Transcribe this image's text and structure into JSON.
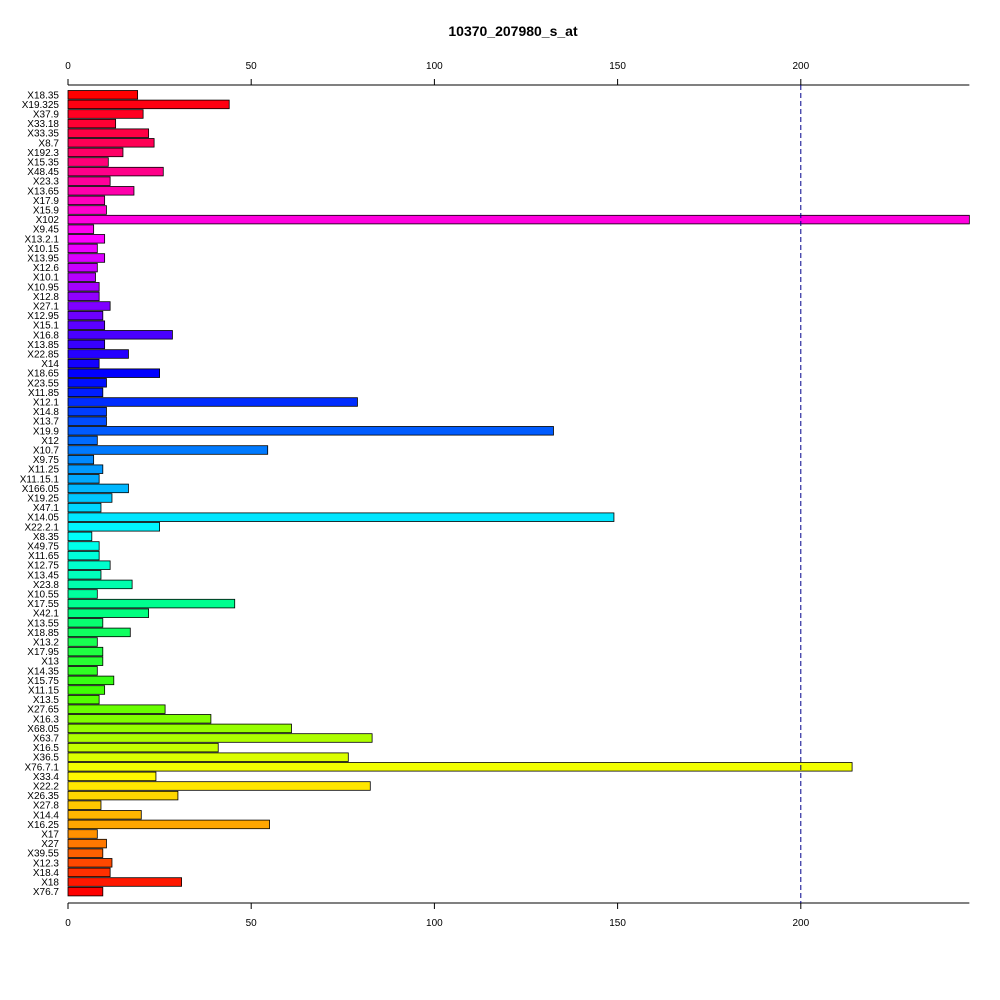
{
  "chart_data": {
    "type": "bar",
    "orientation": "horizontal",
    "title": "10370_207980_s_at",
    "xlabel": "",
    "ylabel": "",
    "xlim": [
      0,
      246
    ],
    "xticks": [
      0,
      50,
      100,
      150,
      200
    ],
    "reference_line": {
      "value": 200,
      "style": "dashed",
      "color": "#00008B"
    },
    "grid": false,
    "legend": "none",
    "colors": "rainbow gradient by bar order (red → magenta → blue → cyan → green → yellow → orange → red)",
    "categories": [
      "X18.35",
      "X19.325",
      "X37.9",
      "X33.18",
      "X33.35",
      "X8.7",
      "X192.3",
      "X15.35",
      "X48.45",
      "X23.3",
      "X13.65",
      "X17.9",
      "X15.9",
      "X102",
      "X9.45",
      "X13.2.1",
      "X10.15",
      "X13.95",
      "X12.6",
      "X10.1",
      "X10.95",
      "X12.8",
      "X27.1",
      "X12.95",
      "X15.1",
      "X16.8",
      "X13.85",
      "X22.85",
      "X14",
      "X18.65",
      "X23.55",
      "X11.85",
      "X12.1",
      "X14.8",
      "X13.7",
      "X19.9",
      "X12",
      "X10.7",
      "X9.75",
      "X11.25",
      "X11.15.1",
      "X166.05",
      "X19.25",
      "X47.1",
      "X14.05",
      "X22.2.1",
      "X8.35",
      "X49.75",
      "X11.65",
      "X12.75",
      "X13.45",
      "X23.8",
      "X10.55",
      "X17.55",
      "X42.1",
      "X13.55",
      "X18.85",
      "X13.2",
      "X17.95",
      "X13",
      "X14.35",
      "X15.75",
      "X11.15",
      "X13.5",
      "X27.65",
      "X16.3",
      "X68.05",
      "X63.7",
      "X16.5",
      "X36.5",
      "X76.7.1",
      "X33.4",
      "X22.2",
      "X26.35",
      "X27.8",
      "X14.4",
      "X16.25",
      "X17",
      "X27",
      "X39.55",
      "X12.3",
      "X18.4",
      "X18",
      "X76.7"
    ],
    "values": [
      19,
      44,
      20.5,
      13,
      22,
      23.5,
      15,
      11,
      26,
      11.5,
      18,
      10,
      10.5,
      246,
      7,
      10,
      8,
      10,
      8,
      7.5,
      8.5,
      8.5,
      11.5,
      9.5,
      10,
      28.5,
      10,
      16.5,
      8.5,
      25,
      10.5,
      9.5,
      79,
      10.5,
      10.5,
      132.5,
      8,
      54.5,
      7,
      9.5,
      8.5,
      16.5,
      12,
      9,
      149,
      25,
      6.5,
      8.5,
      8.5,
      11.5,
      9,
      17.5,
      8,
      45.5,
      22,
      9.5,
      17,
      8,
      9.5,
      9.5,
      8,
      12.5,
      10,
      8.5,
      26.5,
      39,
      61,
      83,
      41,
      76.5,
      214,
      24,
      82.5,
      30,
      9,
      20,
      55,
      8,
      10.5,
      9.5,
      12,
      11.5,
      31,
      9.5
    ]
  }
}
